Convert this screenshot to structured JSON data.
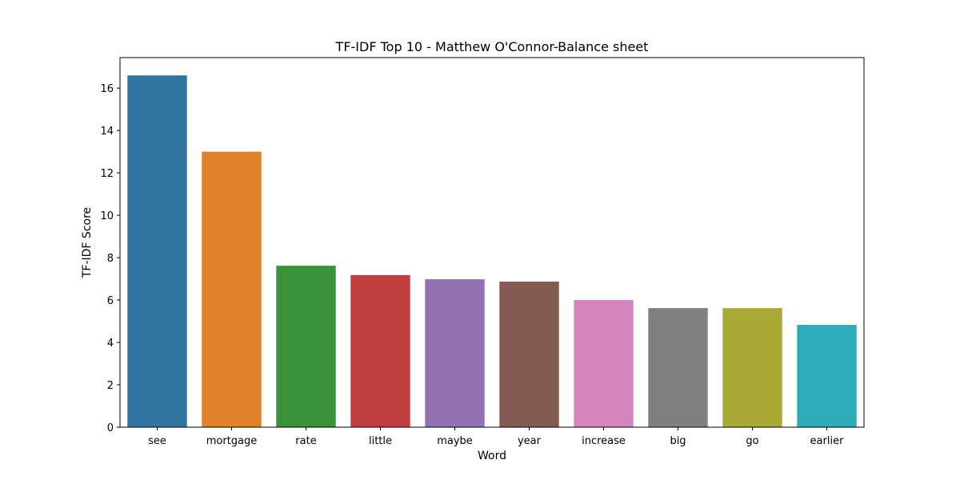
{
  "chart_data": {
    "type": "bar",
    "title": "TF-IDF Top 10 - Matthew O'Connor-Balance sheet",
    "xlabel": "Word",
    "ylabel": "TF-IDF Score",
    "categories": [
      "see",
      "mortgage",
      "rate",
      "little",
      "maybe",
      "year",
      "increase",
      "big",
      "go",
      "earlier"
    ],
    "values": [
      16.6,
      13.0,
      7.62,
      7.18,
      6.98,
      6.87,
      6.0,
      5.62,
      5.62,
      4.83
    ],
    "colors": [
      "#3274a1",
      "#e1812c",
      "#3a923a",
      "#c03d3e",
      "#9372b2",
      "#845b53",
      "#d684bd",
      "#7f7f7f",
      "#a9aa35",
      "#2eabb8"
    ],
    "ylim": [
      0,
      17.44
    ],
    "yticks": [
      0,
      2,
      4,
      6,
      8,
      10,
      12,
      14,
      16
    ],
    "grid": false,
    "legend": "none"
  }
}
